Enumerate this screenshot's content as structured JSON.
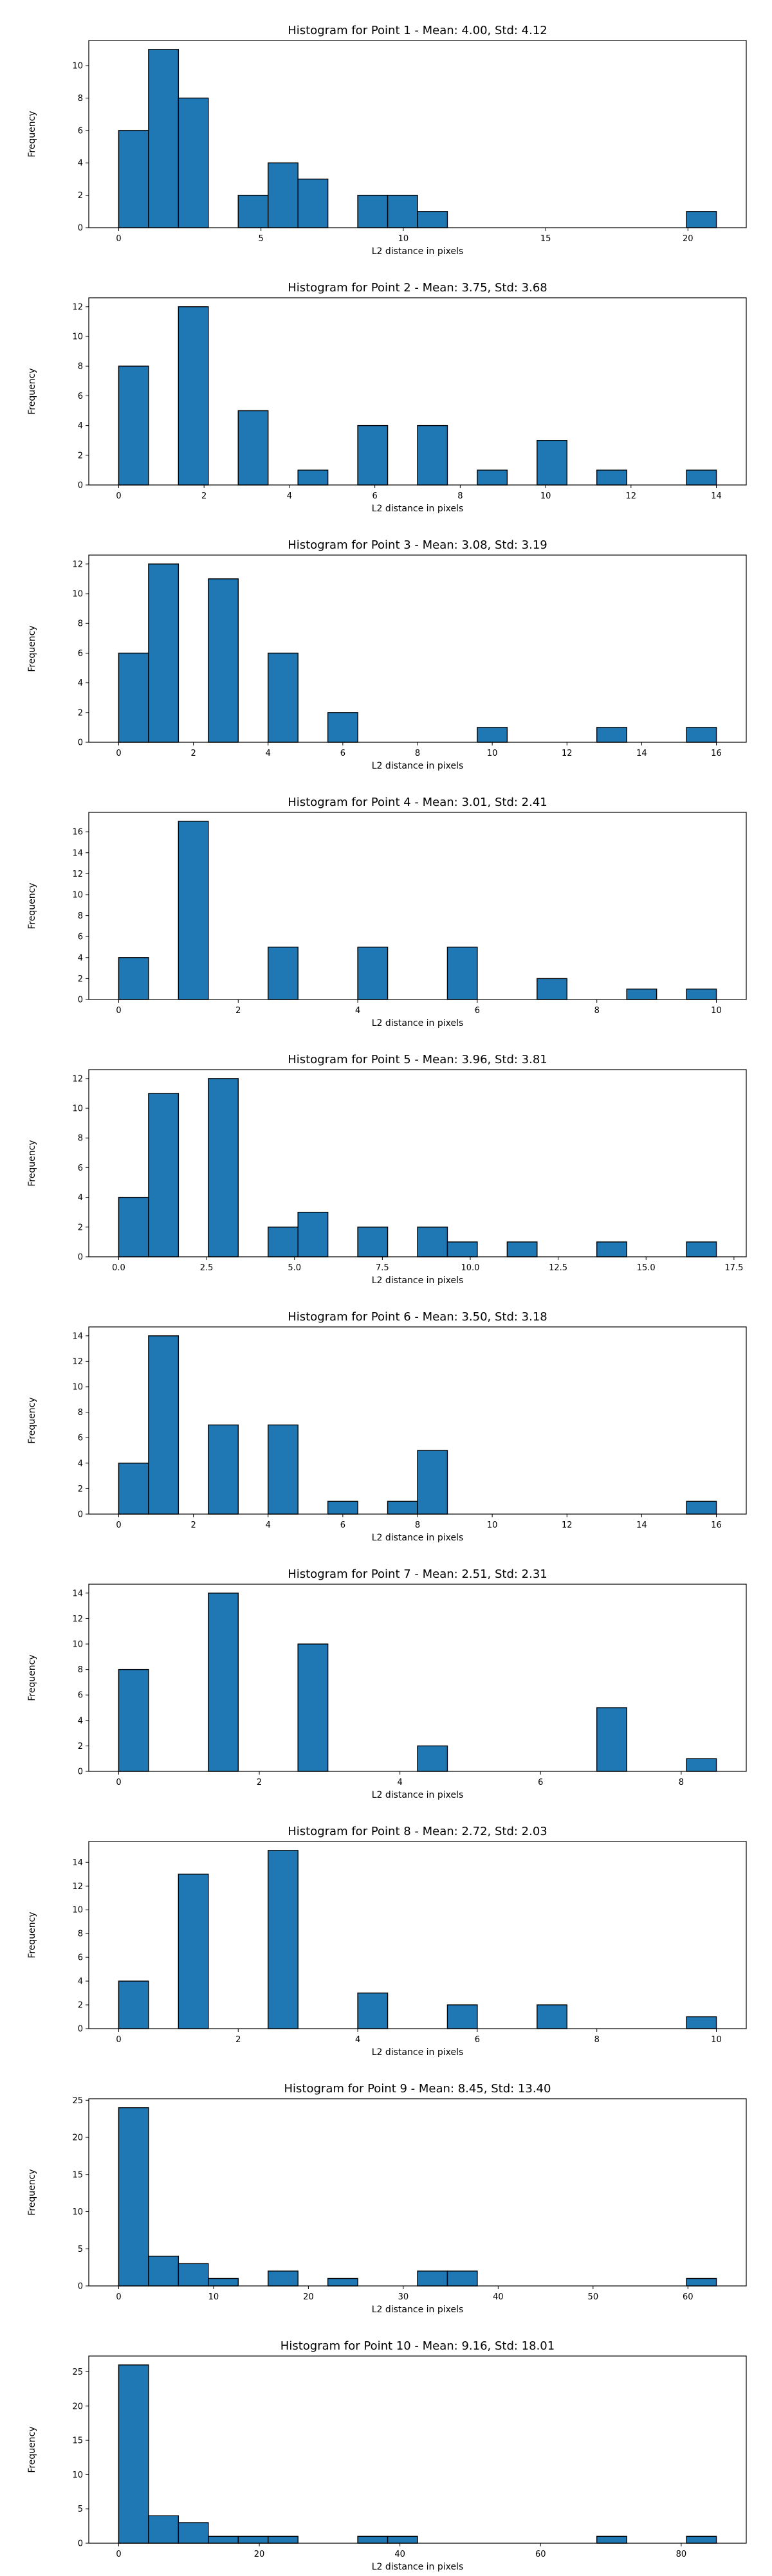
{
  "chart_data": [
    {
      "type": "bar",
      "title": "Histogram for Point 1 - Mean: 4.00, Std: 4.12",
      "xlabel": "L2 distance in pixels",
      "ylabel": "Frequency",
      "xlim": [
        -1.05,
        22.05
      ],
      "ylim": [
        0,
        11.55
      ],
      "xticks": [
        0,
        5,
        10,
        15,
        20
      ],
      "xtick_labels": [
        "0",
        "5",
        "10",
        "15",
        "20"
      ],
      "yticks": [
        0,
        2,
        4,
        6,
        8,
        10
      ],
      "ytick_labels": [
        "0",
        "2",
        "4",
        "6",
        "8",
        "10"
      ],
      "bins": [
        {
          "x0": 0,
          "x1": 1.05,
          "value": 6
        },
        {
          "x0": 1.05,
          "x1": 2.1,
          "value": 11
        },
        {
          "x0": 2.1,
          "x1": 3.15,
          "value": 8
        },
        {
          "x0": 4.2,
          "x1": 5.25,
          "value": 2
        },
        {
          "x0": 5.25,
          "x1": 6.3,
          "value": 4
        },
        {
          "x0": 6.3,
          "x1": 7.35,
          "value": 3
        },
        {
          "x0": 8.4,
          "x1": 9.45,
          "value": 2
        },
        {
          "x0": 9.45,
          "x1": 10.5,
          "value": 2
        },
        {
          "x0": 10.5,
          "x1": 11.55,
          "value": 1
        },
        {
          "x0": 19.95,
          "x1": 21.0,
          "value": 1
        }
      ]
    },
    {
      "type": "bar",
      "title": "Histogram for Point 2 - Mean: 3.75, Std: 3.68",
      "xlabel": "L2 distance in pixels",
      "ylabel": "Frequency",
      "xlim": [
        -0.7,
        14.7
      ],
      "ylim": [
        0,
        12.6
      ],
      "xticks": [
        0,
        2,
        4,
        6,
        8,
        10,
        12,
        14
      ],
      "xtick_labels": [
        "0",
        "2",
        "4",
        "6",
        "8",
        "10",
        "12",
        "14"
      ],
      "yticks": [
        0,
        2,
        4,
        6,
        8,
        10,
        12
      ],
      "ytick_labels": [
        "0",
        "2",
        "4",
        "6",
        "8",
        "10",
        "12"
      ],
      "bins": [
        {
          "x0": 0,
          "x1": 0.7,
          "value": 8
        },
        {
          "x0": 1.4,
          "x1": 2.1,
          "value": 12
        },
        {
          "x0": 2.8,
          "x1": 3.5,
          "value": 5
        },
        {
          "x0": 4.2,
          "x1": 4.9,
          "value": 1
        },
        {
          "x0": 5.6,
          "x1": 6.3,
          "value": 4
        },
        {
          "x0": 7.0,
          "x1": 7.7,
          "value": 4
        },
        {
          "x0": 8.4,
          "x1": 9.1,
          "value": 1
        },
        {
          "x0": 9.8,
          "x1": 10.5,
          "value": 3
        },
        {
          "x0": 11.2,
          "x1": 11.9,
          "value": 1
        },
        {
          "x0": 13.3,
          "x1": 14.0,
          "value": 1
        }
      ]
    },
    {
      "type": "bar",
      "title": "Histogram for Point 3 - Mean: 3.08, Std: 3.19",
      "xlabel": "L2 distance in pixels",
      "ylabel": "Frequency",
      "xlim": [
        -0.8,
        16.8
      ],
      "ylim": [
        0,
        12.6
      ],
      "xticks": [
        0,
        2,
        4,
        6,
        8,
        10,
        12,
        14,
        16
      ],
      "xtick_labels": [
        "0",
        "2",
        "4",
        "6",
        "8",
        "10",
        "12",
        "14",
        "16"
      ],
      "yticks": [
        0,
        2,
        4,
        6,
        8,
        10,
        12
      ],
      "ytick_labels": [
        "0",
        "2",
        "4",
        "6",
        "8",
        "10",
        "12"
      ],
      "bins": [
        {
          "x0": 0,
          "x1": 0.8,
          "value": 6
        },
        {
          "x0": 0.8,
          "x1": 1.6,
          "value": 12
        },
        {
          "x0": 2.4,
          "x1": 3.2,
          "value": 11
        },
        {
          "x0": 4.0,
          "x1": 4.8,
          "value": 6
        },
        {
          "x0": 5.6,
          "x1": 6.4,
          "value": 2
        },
        {
          "x0": 9.6,
          "x1": 10.4,
          "value": 1
        },
        {
          "x0": 12.8,
          "x1": 13.6,
          "value": 1
        },
        {
          "x0": 15.2,
          "x1": 16.0,
          "value": 1
        }
      ]
    },
    {
      "type": "bar",
      "title": "Histogram for Point 4 - Mean: 3.01, Std: 2.41",
      "xlabel": "L2 distance in pixels",
      "ylabel": "Frequency",
      "xlim": [
        -0.5,
        10.5
      ],
      "ylim": [
        0,
        17.85
      ],
      "xticks": [
        0,
        2,
        4,
        6,
        8,
        10
      ],
      "xtick_labels": [
        "0",
        "2",
        "4",
        "6",
        "8",
        "10"
      ],
      "yticks": [
        0,
        2,
        4,
        6,
        8,
        10,
        12,
        14,
        16
      ],
      "ytick_labels": [
        "0",
        "2",
        "4",
        "6",
        "8",
        "10",
        "12",
        "14",
        "16"
      ],
      "bins": [
        {
          "x0": 0,
          "x1": 0.5,
          "value": 4
        },
        {
          "x0": 1.0,
          "x1": 1.5,
          "value": 17
        },
        {
          "x0": 2.5,
          "x1": 3.0,
          "value": 5
        },
        {
          "x0": 4.0,
          "x1": 4.5,
          "value": 5
        },
        {
          "x0": 5.5,
          "x1": 6.0,
          "value": 5
        },
        {
          "x0": 7.0,
          "x1": 7.5,
          "value": 2
        },
        {
          "x0": 8.5,
          "x1": 9.0,
          "value": 1
        },
        {
          "x0": 9.5,
          "x1": 10.0,
          "value": 1
        }
      ]
    },
    {
      "type": "bar",
      "title": "Histogram for Point 5 - Mean: 3.96, Std: 3.81",
      "xlabel": "L2 distance in pixels",
      "ylabel": "Frequency",
      "xlim": [
        -0.85,
        17.85
      ],
      "ylim": [
        0,
        12.6
      ],
      "xticks": [
        0,
        2.5,
        5,
        7.5,
        10,
        12.5,
        15,
        17.5
      ],
      "xtick_labels": [
        "0.0",
        "2.5",
        "5.0",
        "7.5",
        "10.0",
        "12.5",
        "15.0",
        "17.5"
      ],
      "yticks": [
        0,
        2,
        4,
        6,
        8,
        10,
        12
      ],
      "ytick_labels": [
        "0",
        "2",
        "4",
        "6",
        "8",
        "10",
        "12"
      ],
      "bins": [
        {
          "x0": 0,
          "x1": 0.85,
          "value": 4
        },
        {
          "x0": 0.85,
          "x1": 1.7,
          "value": 11
        },
        {
          "x0": 2.55,
          "x1": 3.4,
          "value": 12
        },
        {
          "x0": 4.25,
          "x1": 5.1,
          "value": 2
        },
        {
          "x0": 5.1,
          "x1": 5.95,
          "value": 3
        },
        {
          "x0": 6.8,
          "x1": 7.65,
          "value": 2
        },
        {
          "x0": 8.5,
          "x1": 9.35,
          "value": 2
        },
        {
          "x0": 9.35,
          "x1": 10.2,
          "value": 1
        },
        {
          "x0": 11.05,
          "x1": 11.9,
          "value": 1
        },
        {
          "x0": 13.6,
          "x1": 14.45,
          "value": 1
        },
        {
          "x0": 16.15,
          "x1": 17.0,
          "value": 1
        }
      ]
    },
    {
      "type": "bar",
      "title": "Histogram for Point 6 - Mean: 3.50, Std: 3.18",
      "xlabel": "L2 distance in pixels",
      "ylabel": "Frequency",
      "xlim": [
        -0.8,
        16.8
      ],
      "ylim": [
        0,
        14.7
      ],
      "xticks": [
        0,
        2,
        4,
        6,
        8,
        10,
        12,
        14,
        16
      ],
      "xtick_labels": [
        "0",
        "2",
        "4",
        "6",
        "8",
        "10",
        "12",
        "14",
        "16"
      ],
      "yticks": [
        0,
        2,
        4,
        6,
        8,
        10,
        12,
        14
      ],
      "ytick_labels": [
        "0",
        "2",
        "4",
        "6",
        "8",
        "10",
        "12",
        "14"
      ],
      "bins": [
        {
          "x0": 0,
          "x1": 0.8,
          "value": 4
        },
        {
          "x0": 0.8,
          "x1": 1.6,
          "value": 14
        },
        {
          "x0": 2.4,
          "x1": 3.2,
          "value": 7
        },
        {
          "x0": 4.0,
          "x1": 4.8,
          "value": 7
        },
        {
          "x0": 5.6,
          "x1": 6.4,
          "value": 1
        },
        {
          "x0": 7.2,
          "x1": 8.0,
          "value": 1
        },
        {
          "x0": 8.0,
          "x1": 8.8,
          "value": 5
        },
        {
          "x0": 15.2,
          "x1": 16.0,
          "value": 1
        }
      ]
    },
    {
      "type": "bar",
      "title": "Histogram for Point 7 - Mean: 2.51, Std: 2.31",
      "xlabel": "L2 distance in pixels",
      "ylabel": "Frequency",
      "xlim": [
        -0.425,
        8.925
      ],
      "ylim": [
        0,
        14.7
      ],
      "xticks": [
        0,
        2,
        4,
        6,
        8
      ],
      "xtick_labels": [
        "0",
        "2",
        "4",
        "6",
        "8"
      ],
      "yticks": [
        0,
        2,
        4,
        6,
        8,
        10,
        12,
        14
      ],
      "ytick_labels": [
        "0",
        "2",
        "4",
        "6",
        "8",
        "10",
        "12",
        "14"
      ],
      "bins": [
        {
          "x0": 0,
          "x1": 0.425,
          "value": 8
        },
        {
          "x0": 1.275,
          "x1": 1.7,
          "value": 14
        },
        {
          "x0": 2.55,
          "x1": 2.975,
          "value": 10
        },
        {
          "x0": 4.25,
          "x1": 4.675,
          "value": 2
        },
        {
          "x0": 6.8,
          "x1": 7.225,
          "value": 5
        },
        {
          "x0": 8.075,
          "x1": 8.5,
          "value": 1
        }
      ]
    },
    {
      "type": "bar",
      "title": "Histogram for Point 8 - Mean: 2.72, Std: 2.03",
      "xlabel": "L2 distance in pixels",
      "ylabel": "Frequency",
      "xlim": [
        -0.5,
        10.5
      ],
      "ylim": [
        0,
        15.75
      ],
      "xticks": [
        0,
        2,
        4,
        6,
        8,
        10
      ],
      "xtick_labels": [
        "0",
        "2",
        "4",
        "6",
        "8",
        "10"
      ],
      "yticks": [
        0,
        2,
        4,
        6,
        8,
        10,
        12,
        14
      ],
      "ytick_labels": [
        "0",
        "2",
        "4",
        "6",
        "8",
        "10",
        "12",
        "14"
      ],
      "bins": [
        {
          "x0": 0,
          "x1": 0.5,
          "value": 4
        },
        {
          "x0": 1.0,
          "x1": 1.5,
          "value": 13
        },
        {
          "x0": 2.5,
          "x1": 3.0,
          "value": 15
        },
        {
          "x0": 4.0,
          "x1": 4.5,
          "value": 3
        },
        {
          "x0": 5.5,
          "x1": 6.0,
          "value": 2
        },
        {
          "x0": 7.0,
          "x1": 7.5,
          "value": 2
        },
        {
          "x0": 9.5,
          "x1": 10.0,
          "value": 1
        }
      ]
    },
    {
      "type": "bar",
      "title": "Histogram for Point 9 - Mean: 8.45, Std: 13.40",
      "xlabel": "L2 distance in pixels",
      "ylabel": "Frequency",
      "xlim": [
        -3.15,
        66.15
      ],
      "ylim": [
        0,
        25.2
      ],
      "xticks": [
        0,
        10,
        20,
        30,
        40,
        50,
        60
      ],
      "xtick_labels": [
        "0",
        "10",
        "20",
        "30",
        "40",
        "50",
        "60"
      ],
      "yticks": [
        0,
        5,
        10,
        15,
        20,
        25
      ],
      "ytick_labels": [
        "0",
        "5",
        "10",
        "15",
        "20",
        "25"
      ],
      "bins": [
        {
          "x0": 0,
          "x1": 3.15,
          "value": 24
        },
        {
          "x0": 3.15,
          "x1": 6.3,
          "value": 4
        },
        {
          "x0": 6.3,
          "x1": 9.45,
          "value": 3
        },
        {
          "x0": 9.45,
          "x1": 12.6,
          "value": 1
        },
        {
          "x0": 15.75,
          "x1": 18.9,
          "value": 2
        },
        {
          "x0": 22.05,
          "x1": 25.2,
          "value": 1
        },
        {
          "x0": 31.5,
          "x1": 34.65,
          "value": 2
        },
        {
          "x0": 34.65,
          "x1": 37.8,
          "value": 2
        },
        {
          "x0": 59.85,
          "x1": 63.0,
          "value": 1
        }
      ]
    },
    {
      "type": "bar",
      "title": "Histogram for Point 10 - Mean: 9.16, Std: 18.01",
      "xlabel": "L2 distance in pixels",
      "ylabel": "Frequency",
      "xlim": [
        -4.25,
        89.25
      ],
      "ylim": [
        0,
        27.3
      ],
      "xticks": [
        0,
        20,
        40,
        60,
        80
      ],
      "xtick_labels": [
        "0",
        "20",
        "40",
        "60",
        "80"
      ],
      "yticks": [
        0,
        5,
        10,
        15,
        20,
        25
      ],
      "ytick_labels": [
        "0",
        "5",
        "10",
        "15",
        "20",
        "25"
      ],
      "bins": [
        {
          "x0": 0,
          "x1": 4.25,
          "value": 26
        },
        {
          "x0": 4.25,
          "x1": 8.5,
          "value": 4
        },
        {
          "x0": 8.5,
          "x1": 12.75,
          "value": 3
        },
        {
          "x0": 12.75,
          "x1": 17.0,
          "value": 1
        },
        {
          "x0": 17.0,
          "x1": 21.25,
          "value": 1
        },
        {
          "x0": 21.25,
          "x1": 25.5,
          "value": 1
        },
        {
          "x0": 34.0,
          "x1": 38.25,
          "value": 1
        },
        {
          "x0": 38.25,
          "x1": 42.5,
          "value": 1
        },
        {
          "x0": 68.0,
          "x1": 72.25,
          "value": 1
        },
        {
          "x0": 80.75,
          "x1": 85.0,
          "value": 1
        }
      ]
    }
  ]
}
